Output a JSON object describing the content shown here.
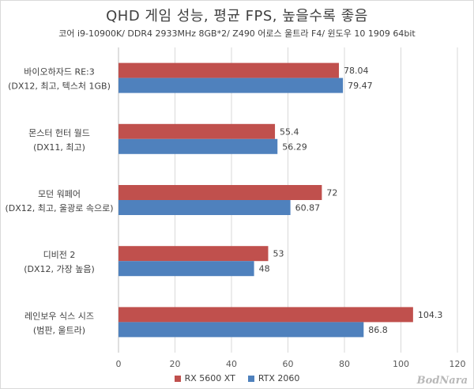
{
  "chart_data": {
    "type": "bar",
    "orientation": "horizontal",
    "title": "QHD 게임 성능, 평균 FPS, 높을수록 좋음",
    "subtitle": "코어 i9-10900K/ DDR4 2933MHz 8GB*2/ Z490 어로스 울트라 F4/ 윈도우 10 1909 64bit",
    "categories": [
      {
        "line1": "바이오하자드 RE:3",
        "line2": "(DX12, 최고, 텍스처 1GB)"
      },
      {
        "line1": "몬스터 헌터 월드",
        "line2": "(DX11, 최고)"
      },
      {
        "line1": "모던 워페어",
        "line2": "(DX12, 최고, 울광로 속으로)"
      },
      {
        "line1": "디비전 2",
        "line2": "(DX12, 가장 높음)"
      },
      {
        "line1": "레인보우 식스 시즈",
        "line2": "(범판, 울트라)"
      }
    ],
    "series": [
      {
        "name": "RX 5600 XT",
        "color": "#c0504d",
        "values": [
          78.04,
          55.4,
          72,
          53,
          104.3
        ],
        "labels": [
          "78.04",
          "55.4",
          "72",
          "53",
          "104.3"
        ]
      },
      {
        "name": "RTX 2060",
        "color": "#4f81bd",
        "values": [
          79.47,
          56.29,
          60.87,
          48,
          86.8
        ],
        "labels": [
          "79.47",
          "56.29",
          "60.87",
          "48",
          "86.8"
        ]
      }
    ],
    "xlim": [
      0,
      120
    ],
    "xticks": [
      "0",
      "20",
      "40",
      "60",
      "80",
      "100",
      "120"
    ],
    "xtick_values": [
      0,
      20,
      40,
      60,
      80,
      100,
      120
    ],
    "grid": true,
    "legend_position": "bottom"
  },
  "watermark": "BodNara"
}
